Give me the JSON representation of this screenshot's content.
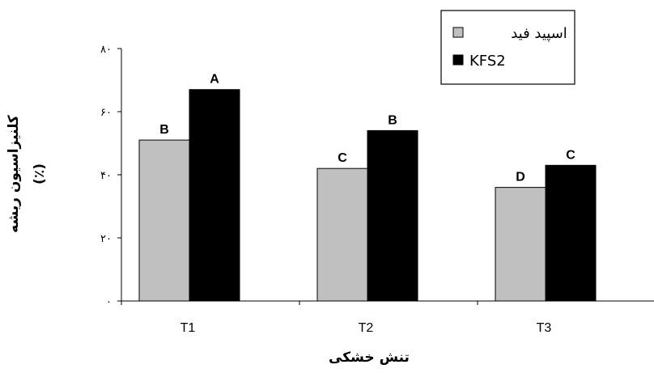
{
  "chart_data": {
    "type": "bar",
    "categories": [
      "T1",
      "T2",
      "T3"
    ],
    "series": [
      {
        "name": "اسپید فید",
        "color": "#c0c0c0",
        "values": [
          51,
          42,
          36
        ],
        "labels": [
          "B",
          "C",
          "D"
        ]
      },
      {
        "name": "KFS2",
        "color": "#000000",
        "values": [
          67,
          54,
          43
        ],
        "labels": [
          "A",
          "B",
          "C"
        ]
      }
    ],
    "xlabel": "تنش خشکی",
    "ylabel_line1": "کلنیزاسیون ریشه",
    "ylabel_line2": "(٪)",
    "ylim": [
      0,
      80
    ],
    "yticks": [
      0,
      20,
      40,
      60,
      80
    ],
    "ytick_labels": [
      "۰",
      "۲۰",
      "۴۰",
      "۶۰",
      "۸۰"
    ],
    "grid": false,
    "legend_position": "top-right"
  }
}
